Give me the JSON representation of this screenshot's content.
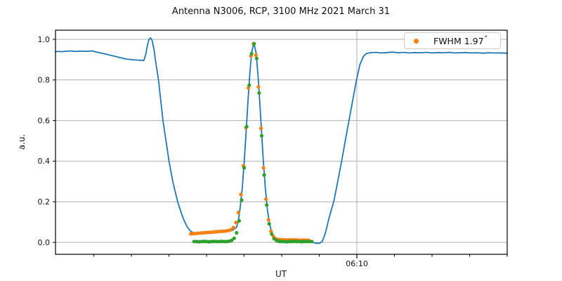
{
  "chart_data": {
    "type": "line",
    "title": "Antenna N3006, RCP, 3100 MHz 2021 March 31",
    "xlabel": "UT",
    "ylabel": "a.u.",
    "x_units": "minutes after 06:00 UT",
    "xlim": [
      1.98,
      14.0
    ],
    "ylim": [
      -0.059,
      1.045
    ],
    "y_ticks": [
      "0.0",
      "0.2",
      "0.4",
      "0.6",
      "0.8",
      "1.0"
    ],
    "y_tick_values": [
      0.0,
      0.2,
      0.4,
      0.6,
      0.8,
      1.0
    ],
    "x_major_tick": {
      "minute": 10,
      "label": "06:10"
    },
    "x_minor_tick_minutes": [
      3,
      4,
      5,
      6,
      7,
      8,
      9,
      11,
      12,
      13,
      14
    ],
    "grid": {
      "horizontal": true,
      "vertical_at_major": true,
      "color": "#b0b0b0"
    },
    "legend": {
      "position": "upper right",
      "entries": [
        {
          "label": "FWHM 1.97",
          "degree_symbol": "°",
          "marker": "orange-dot",
          "marker_color": "#ff7f0e"
        }
      ]
    },
    "series": [
      {
        "name": "antenna-signal",
        "type": "line",
        "color": "#1f77b4",
        "width": 1.8,
        "points": [
          [
            1.98,
            0.939
          ],
          [
            2.06,
            0.941
          ],
          [
            2.14,
            0.939
          ],
          [
            2.22,
            0.941
          ],
          [
            2.3,
            0.942
          ],
          [
            2.38,
            0.943
          ],
          [
            2.46,
            0.941
          ],
          [
            2.54,
            0.941
          ],
          [
            2.62,
            0.942
          ],
          [
            2.7,
            0.942
          ],
          [
            2.78,
            0.941
          ],
          [
            2.86,
            0.942
          ],
          [
            2.93,
            0.943
          ],
          [
            2.98,
            0.942
          ],
          [
            3.1,
            0.936
          ],
          [
            3.3,
            0.928
          ],
          [
            3.5,
            0.919
          ],
          [
            3.7,
            0.91
          ],
          [
            3.85,
            0.903
          ],
          [
            4.0,
            0.9
          ],
          [
            4.15,
            0.898
          ],
          [
            4.28,
            0.897
          ],
          [
            4.33,
            0.896
          ],
          [
            4.38,
            0.925
          ],
          [
            4.43,
            0.975
          ],
          [
            4.47,
            1.0
          ],
          [
            4.51,
            1.007
          ],
          [
            4.55,
            0.995
          ],
          [
            4.6,
            0.95
          ],
          [
            4.65,
            0.885
          ],
          [
            4.72,
            0.8
          ],
          [
            4.78,
            0.7
          ],
          [
            4.84,
            0.6
          ],
          [
            4.92,
            0.5
          ],
          [
            5.0,
            0.4
          ],
          [
            5.1,
            0.3
          ],
          [
            5.23,
            0.2
          ],
          [
            5.32,
            0.148
          ],
          [
            5.4,
            0.108
          ],
          [
            5.48,
            0.078
          ],
          [
            5.56,
            0.058
          ],
          [
            5.64,
            0.047
          ],
          [
            5.75,
            0.045
          ],
          [
            5.95,
            0.047
          ],
          [
            6.15,
            0.05
          ],
          [
            6.35,
            0.053
          ],
          [
            6.55,
            0.056
          ],
          [
            6.7,
            0.06
          ],
          [
            6.8,
            0.075
          ],
          [
            6.85,
            0.11
          ],
          [
            6.9,
            0.18
          ],
          [
            6.95,
            0.27
          ],
          [
            7.0,
            0.39
          ],
          [
            7.05,
            0.535
          ],
          [
            7.1,
            0.69
          ],
          [
            7.15,
            0.83
          ],
          [
            7.2,
            0.935
          ],
          [
            7.26,
            0.982
          ],
          [
            7.32,
            0.93
          ],
          [
            7.38,
            0.795
          ],
          [
            7.44,
            0.615
          ],
          [
            7.5,
            0.43
          ],
          [
            7.56,
            0.275
          ],
          [
            7.62,
            0.16
          ],
          [
            7.68,
            0.088
          ],
          [
            7.74,
            0.046
          ],
          [
            7.8,
            0.024
          ],
          [
            7.86,
            0.017
          ],
          [
            7.95,
            0.013
          ],
          [
            8.1,
            0.012
          ],
          [
            8.3,
            0.011
          ],
          [
            8.5,
            0.01
          ],
          [
            8.65,
            0.008
          ],
          [
            8.78,
            0.003
          ],
          [
            8.9,
            -0.004
          ],
          [
            9.0,
            -0.005
          ],
          [
            9.08,
            0.005
          ],
          [
            9.16,
            0.045
          ],
          [
            9.26,
            0.12
          ],
          [
            9.39,
            0.205
          ],
          [
            9.5,
            0.31
          ],
          [
            9.6,
            0.405
          ],
          [
            9.7,
            0.51
          ],
          [
            9.79,
            0.6
          ],
          [
            9.89,
            0.7
          ],
          [
            9.99,
            0.8
          ],
          [
            10.08,
            0.875
          ],
          [
            10.17,
            0.915
          ],
          [
            10.25,
            0.93
          ],
          [
            10.35,
            0.934
          ],
          [
            10.5,
            0.936
          ],
          [
            10.65,
            0.933
          ],
          [
            10.8,
            0.935
          ],
          [
            10.95,
            0.937
          ],
          [
            11.1,
            0.934
          ],
          [
            11.25,
            0.936
          ],
          [
            11.4,
            0.933
          ],
          [
            11.55,
            0.935
          ],
          [
            11.7,
            0.934
          ],
          [
            11.85,
            0.936
          ],
          [
            12.0,
            0.933
          ],
          [
            12.15,
            0.935
          ],
          [
            12.3,
            0.934
          ],
          [
            12.45,
            0.936
          ],
          [
            12.6,
            0.933
          ],
          [
            12.75,
            0.934
          ],
          [
            12.9,
            0.935
          ],
          [
            13.05,
            0.933
          ],
          [
            13.2,
            0.934
          ],
          [
            13.35,
            0.932
          ],
          [
            13.5,
            0.934
          ],
          [
            13.65,
            0.933
          ],
          [
            13.8,
            0.933
          ],
          [
            13.93,
            0.932
          ],
          [
            14.0,
            0.932
          ]
        ]
      },
      {
        "name": "gaussian-fit",
        "type": "scatter",
        "color": "#ff7f0e",
        "radius": 2.6,
        "points": [
          [
            5.58,
            0.042
          ],
          [
            5.647,
            0.043
          ],
          [
            5.713,
            0.044
          ],
          [
            5.78,
            0.045
          ],
          [
            5.847,
            0.046
          ],
          [
            5.913,
            0.047
          ],
          [
            5.98,
            0.048
          ],
          [
            6.047,
            0.049
          ],
          [
            6.113,
            0.05
          ],
          [
            6.18,
            0.051
          ],
          [
            6.247,
            0.052
          ],
          [
            6.313,
            0.053
          ],
          [
            6.38,
            0.054
          ],
          [
            6.447,
            0.055
          ],
          [
            6.513,
            0.056
          ],
          [
            6.58,
            0.058
          ],
          [
            6.647,
            0.062
          ],
          [
            6.713,
            0.073
          ],
          [
            6.78,
            0.098
          ],
          [
            6.847,
            0.147
          ],
          [
            6.913,
            0.236
          ],
          [
            6.98,
            0.377
          ],
          [
            7.047,
            0.565
          ],
          [
            7.113,
            0.761
          ],
          [
            7.18,
            0.918
          ],
          [
            7.247,
            0.979
          ],
          [
            7.313,
            0.922
          ],
          [
            7.38,
            0.766
          ],
          [
            7.447,
            0.562
          ],
          [
            7.513,
            0.367
          ],
          [
            7.58,
            0.213
          ],
          [
            7.647,
            0.111
          ],
          [
            7.713,
            0.055
          ],
          [
            7.78,
            0.028
          ],
          [
            7.847,
            0.017
          ],
          [
            7.913,
            0.014
          ],
          [
            7.98,
            0.013
          ],
          [
            8.047,
            0.013
          ],
          [
            8.113,
            0.012
          ],
          [
            8.18,
            0.012
          ],
          [
            8.247,
            0.012
          ],
          [
            8.313,
            0.012
          ],
          [
            8.38,
            0.012
          ],
          [
            8.447,
            0.011
          ],
          [
            8.513,
            0.011
          ],
          [
            8.58,
            0.011
          ],
          [
            8.647,
            0.011
          ],
          [
            8.713,
            0.011
          ]
        ]
      },
      {
        "name": "scan-data",
        "type": "scatter",
        "color": "#2ca02c",
        "radius": 2.6,
        "points": [
          [
            5.667,
            0.004
          ],
          [
            5.733,
            0.004
          ],
          [
            5.8,
            0.003
          ],
          [
            5.867,
            0.004
          ],
          [
            5.933,
            0.005
          ],
          [
            6.0,
            0.004
          ],
          [
            6.067,
            0.003
          ],
          [
            6.133,
            0.004
          ],
          [
            6.2,
            0.005
          ],
          [
            6.267,
            0.004
          ],
          [
            6.333,
            0.004
          ],
          [
            6.4,
            0.005
          ],
          [
            6.467,
            0.004
          ],
          [
            6.533,
            0.004
          ],
          [
            6.6,
            0.006
          ],
          [
            6.667,
            0.01
          ],
          [
            6.733,
            0.02
          ],
          [
            6.8,
            0.047
          ],
          [
            6.867,
            0.106
          ],
          [
            6.933,
            0.208
          ],
          [
            7.0,
            0.367
          ],
          [
            7.067,
            0.57
          ],
          [
            7.133,
            0.774
          ],
          [
            7.2,
            0.929
          ],
          [
            7.267,
            0.978
          ],
          [
            7.333,
            0.906
          ],
          [
            7.4,
            0.736
          ],
          [
            7.467,
            0.525
          ],
          [
            7.533,
            0.332
          ],
          [
            7.6,
            0.184
          ],
          [
            7.667,
            0.091
          ],
          [
            7.733,
            0.041
          ],
          [
            7.8,
            0.018
          ],
          [
            7.867,
            0.008
          ],
          [
            7.933,
            0.005
          ],
          [
            8.0,
            0.004
          ],
          [
            8.067,
            0.004
          ],
          [
            8.133,
            0.003
          ],
          [
            8.2,
            0.004
          ],
          [
            8.267,
            0.004
          ],
          [
            8.333,
            0.005
          ],
          [
            8.4,
            0.004
          ],
          [
            8.467,
            0.004
          ],
          [
            8.533,
            0.003
          ],
          [
            8.6,
            0.004
          ],
          [
            8.667,
            0.004
          ],
          [
            8.733,
            0.004
          ],
          [
            8.8,
            0.004
          ]
        ]
      }
    ]
  }
}
